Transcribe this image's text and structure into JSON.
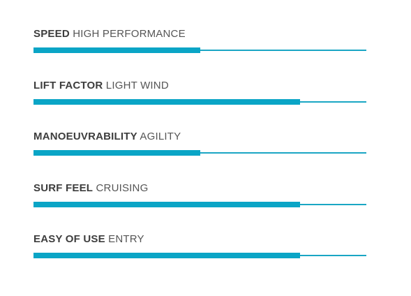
{
  "accent_color": "#0aa5c6",
  "ratings": [
    {
      "title": "SPEED",
      "value": "HIGH PERFORMANCE",
      "level": 0.5
    },
    {
      "title": "LIFT FACTOR",
      "value": "LIGHT WIND",
      "level": 0.8
    },
    {
      "title": "MANOEUVRABILITY",
      "value": "AGILITY",
      "level": 0.5
    },
    {
      "title": "SURF FEEL",
      "value": "CRUISING",
      "level": 0.8
    },
    {
      "title": "EASY OF USE",
      "value": "ENTRY",
      "level": 0.8
    }
  ]
}
